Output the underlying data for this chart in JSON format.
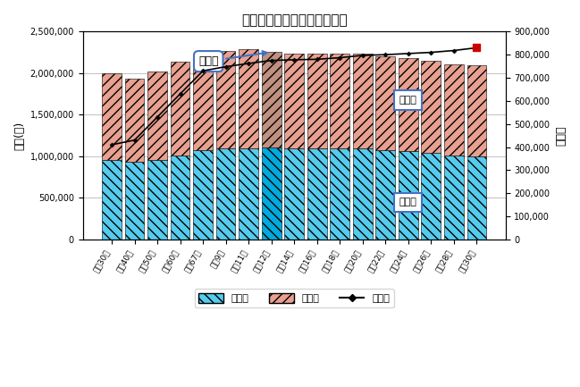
{
  "title": "長野県の人口と世帯数の推移",
  "ylabel_left": "人口(人)",
  "ylabel_right": "世帯数",
  "categories": [
    "昭和30年",
    "昭和40年",
    "昭和50年",
    "昭和60年",
    "平成67年",
    "平成9年",
    "平成11年",
    "平成12年",
    "平成14年",
    "平成16年",
    "平成18年",
    "平成20年",
    "平成22年",
    "平成24年",
    "平成26年",
    "平成28年",
    "平成30年"
  ],
  "male_pop": [
    960000,
    930000,
    960000,
    1010000,
    1075000,
    1090000,
    1100000,
    1110000,
    1090000,
    1090000,
    1090000,
    1090000,
    1070000,
    1060000,
    1040000,
    1010000,
    1000000
  ],
  "female_pop": [
    1040000,
    1000000,
    1060000,
    1130000,
    1165000,
    1175000,
    1185000,
    1145000,
    1145000,
    1140000,
    1145000,
    1145000,
    1130000,
    1120000,
    1110000,
    1095000,
    1090000
  ],
  "households": [
    410000,
    430000,
    530000,
    630000,
    730000,
    748000,
    762000,
    775000,
    778000,
    780000,
    787000,
    797000,
    800000,
    805000,
    810000,
    818000,
    830000
  ],
  "peak_index": 7,
  "peak_bar_color_male": "#00aadd",
  "peak_bar_color_female": "#c09080",
  "bar_color_male": "#55ccee",
  "bar_color_female": "#e8a090",
  "line_color": "#000000",
  "end_marker_color": "#cc0000",
  "ylim_left": [
    0,
    2500000
  ],
  "ylim_right": [
    0,
    900000
  ],
  "legend_labels": [
    "人口男",
    "人口女",
    "世帯数"
  ],
  "annotation_peak": "ピーク",
  "annotation_female": "人口女",
  "annotation_male": "人口男",
  "background_color": "#ffffff",
  "plot_bg_color": "#ffffff",
  "grid_color": "#aaaaaa",
  "border_color": "#808080"
}
